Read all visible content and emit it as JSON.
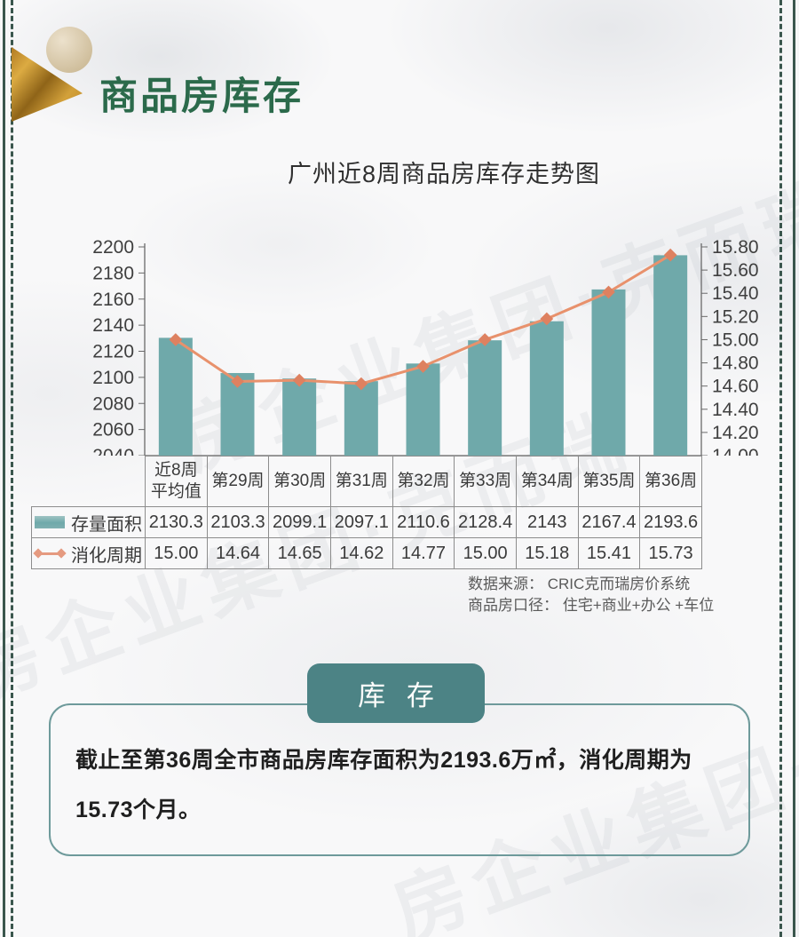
{
  "header": {
    "title": "商品房库存"
  },
  "chart_data": {
    "type": "bar+line",
    "title": "广州近8周商品房库存走势图",
    "categories": [
      "近8周平均值",
      "第29周",
      "第30周",
      "第31周",
      "第32周",
      "第33周",
      "第34周",
      "第35周",
      "第36周"
    ],
    "series": [
      {
        "name": "存量面积",
        "type": "bar",
        "axis": "left",
        "values": [
          2130.3,
          2103.3,
          2099.1,
          2097.1,
          2110.6,
          2128.4,
          2143,
          2167.4,
          2193.6
        ],
        "color": "#6fa9aa"
      },
      {
        "name": "消化周期",
        "type": "line",
        "axis": "right",
        "values": [
          15.0,
          14.64,
          14.65,
          14.62,
          14.77,
          15.0,
          15.18,
          15.41,
          15.73
        ],
        "color": "#e8916c",
        "marker": "diamond",
        "marker_color": "#de8160"
      }
    ],
    "left_axis": {
      "min": 2040,
      "max": 2200,
      "step": 20
    },
    "right_axis": {
      "min": 14.0,
      "max": 15.8,
      "step": 0.2,
      "decimals": 2
    },
    "grid": false,
    "legend_position": "table rows below x-axis"
  },
  "table": {
    "row_labels": [
      "存量面积",
      "消化周期"
    ],
    "rows": [
      [
        "2130.3",
        "2103.3",
        "2099.1",
        "2097.1",
        "2110.6",
        "2128.4",
        "2143",
        "2167.4",
        "2193.6"
      ],
      [
        "15.00",
        "14.64",
        "14.65",
        "14.62",
        "14.77",
        "15.00",
        "15.18",
        "15.41",
        "15.73"
      ]
    ]
  },
  "source": {
    "line1": "数据来源： CRIC克而瑞房价系统",
    "line2": "商品房口径： 住宅+商业+办公 +车位"
  },
  "section": {
    "banner_label": "库 存",
    "summary": "截止至第36周全市商品房库存面积为2193.6万㎡，消化周期为15.73个月。"
  },
  "watermark": {
    "text": "房企业集团·克而瑞"
  },
  "colors": {
    "accent_green": "#2b6a4b",
    "banner_teal": "#4c8385",
    "bar_teal": "#6fa9aa",
    "line_salmon": "#e8916c",
    "edge_green": "#3a564d",
    "gold": "#d3a13a"
  }
}
